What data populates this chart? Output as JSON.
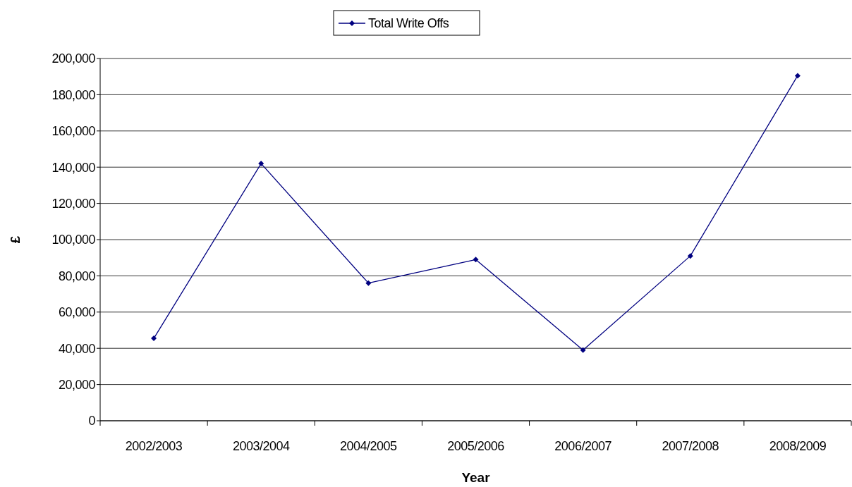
{
  "chart_data": {
    "type": "line",
    "xlabel": "Year",
    "ylabel": "£",
    "categories": [
      "2002/2003",
      "2003/2004",
      "2004/2005",
      "2005/2006",
      "2006/2007",
      "2007/2008",
      "2008/2009"
    ],
    "series": [
      {
        "name": "Total Write Offs",
        "color": "#000080",
        "values": [
          45500,
          142000,
          76000,
          89000,
          39000,
          91000,
          190500
        ]
      }
    ],
    "ylim": [
      0,
      200000
    ],
    "yticks": [
      {
        "value": 0,
        "label": "0"
      },
      {
        "value": 20000,
        "label": "20,000"
      },
      {
        "value": 40000,
        "label": "40,000"
      },
      {
        "value": 60000,
        "label": "60,000"
      },
      {
        "value": 80000,
        "label": "80,000"
      },
      {
        "value": 100000,
        "label": "100,000"
      },
      {
        "value": 120000,
        "label": "120,000"
      },
      {
        "value": 140000,
        "label": "140,000"
      },
      {
        "value": 160000,
        "label": "160,000"
      },
      {
        "value": 180000,
        "label": "180,000"
      },
      {
        "value": 200000,
        "label": "200,000"
      }
    ],
    "grid": "y",
    "legend": "top",
    "marker": "diamond",
    "line_style": "solid"
  }
}
